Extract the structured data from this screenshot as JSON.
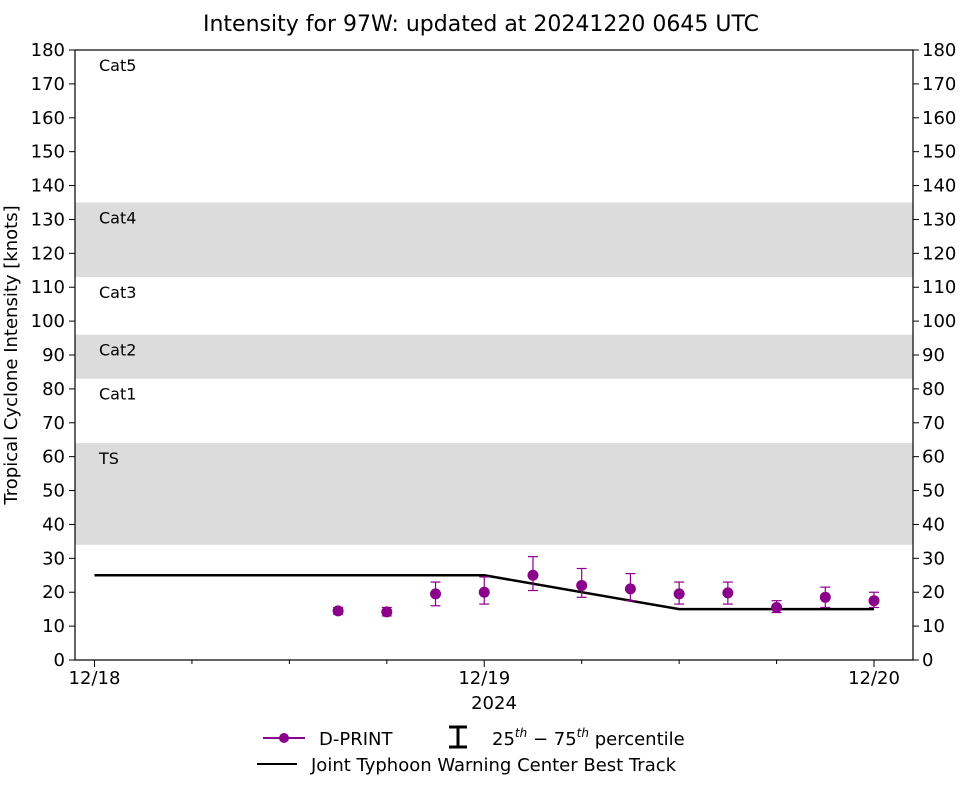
{
  "chart_data": {
    "type": "line",
    "title": "Intensity for 97W: updated at 20241220 0645 UTC",
    "ylabel": "Tropical Cyclone Intensity [knots]",
    "xlabel": "2024",
    "ylim": [
      0,
      180
    ],
    "yticks": [
      0,
      10,
      20,
      30,
      40,
      50,
      60,
      70,
      80,
      90,
      100,
      110,
      120,
      130,
      140,
      150,
      160,
      170,
      180
    ],
    "xlim_days": [
      -0.05,
      2.1
    ],
    "x_major_ticks": [
      {
        "day": 0,
        "label": "12/18"
      },
      {
        "day": 1,
        "label": "12/19"
      },
      {
        "day": 2,
        "label": "12/20"
      }
    ],
    "x_minor_ticks": [
      0.25,
      0.5,
      0.75,
      1.25,
      1.5,
      1.75
    ],
    "category_bands": [
      {
        "label": "TS",
        "from": 34,
        "to": 64,
        "shaded": true
      },
      {
        "label": "Cat1",
        "from": 64,
        "to": 83,
        "shaded": false
      },
      {
        "label": "Cat2",
        "from": 83,
        "to": 96,
        "shaded": true
      },
      {
        "label": "Cat3",
        "from": 96,
        "to": 113,
        "shaded": false
      },
      {
        "label": "Cat4",
        "from": 113,
        "to": 135,
        "shaded": true
      },
      {
        "label": "Cat5",
        "from": 135,
        "to": 180,
        "shaded": false
      }
    ],
    "series": [
      {
        "name": "D-PRINT",
        "color": "#8B008B",
        "points": [
          {
            "x": 0.625,
            "y": 14.5,
            "lo": 13.5,
            "hi": 15.5
          },
          {
            "x": 0.75,
            "y": 14.2,
            "lo": 13.0,
            "hi": 15.5
          },
          {
            "x": 0.875,
            "y": 19.5,
            "lo": 16.0,
            "hi": 23.0
          },
          {
            "x": 1.0,
            "y": 20.0,
            "lo": 16.5,
            "hi": 24.5
          },
          {
            "x": 1.125,
            "y": 25.0,
            "lo": 20.5,
            "hi": 30.5
          },
          {
            "x": 1.25,
            "y": 22.0,
            "lo": 18.5,
            "hi": 27.0
          },
          {
            "x": 1.375,
            "y": 21.0,
            "lo": 17.5,
            "hi": 25.5
          },
          {
            "x": 1.5,
            "y": 19.5,
            "lo": 16.5,
            "hi": 23.0
          },
          {
            "x": 1.625,
            "y": 19.8,
            "lo": 16.5,
            "hi": 23.0
          },
          {
            "x": 1.75,
            "y": 15.5,
            "lo": 14.0,
            "hi": 17.5
          },
          {
            "x": 1.875,
            "y": 18.5,
            "lo": 15.5,
            "hi": 21.5
          },
          {
            "x": 2.0,
            "y": 17.5,
            "lo": 15.5,
            "hi": 20.0
          }
        ]
      },
      {
        "name": "Joint Typhoon Warning Center Best Track",
        "color": "#000000",
        "points": [
          {
            "x": 0.0,
            "y": 25
          },
          {
            "x": 1.0,
            "y": 25
          },
          {
            "x": 1.5,
            "y": 15
          },
          {
            "x": 2.0,
            "y": 15
          }
        ]
      }
    ],
    "legend": {
      "dprint": "D-PRINT",
      "percentile_sup1": "th",
      "percentile_sup2": "th",
      "percentile_a": "25",
      "percentile_b": "75",
      "percentile_dash": " − ",
      "percentile_word": " percentile",
      "besttrack": "Joint Typhoon Warning Center Best Track"
    },
    "shade_color": "#DCDCDC"
  }
}
